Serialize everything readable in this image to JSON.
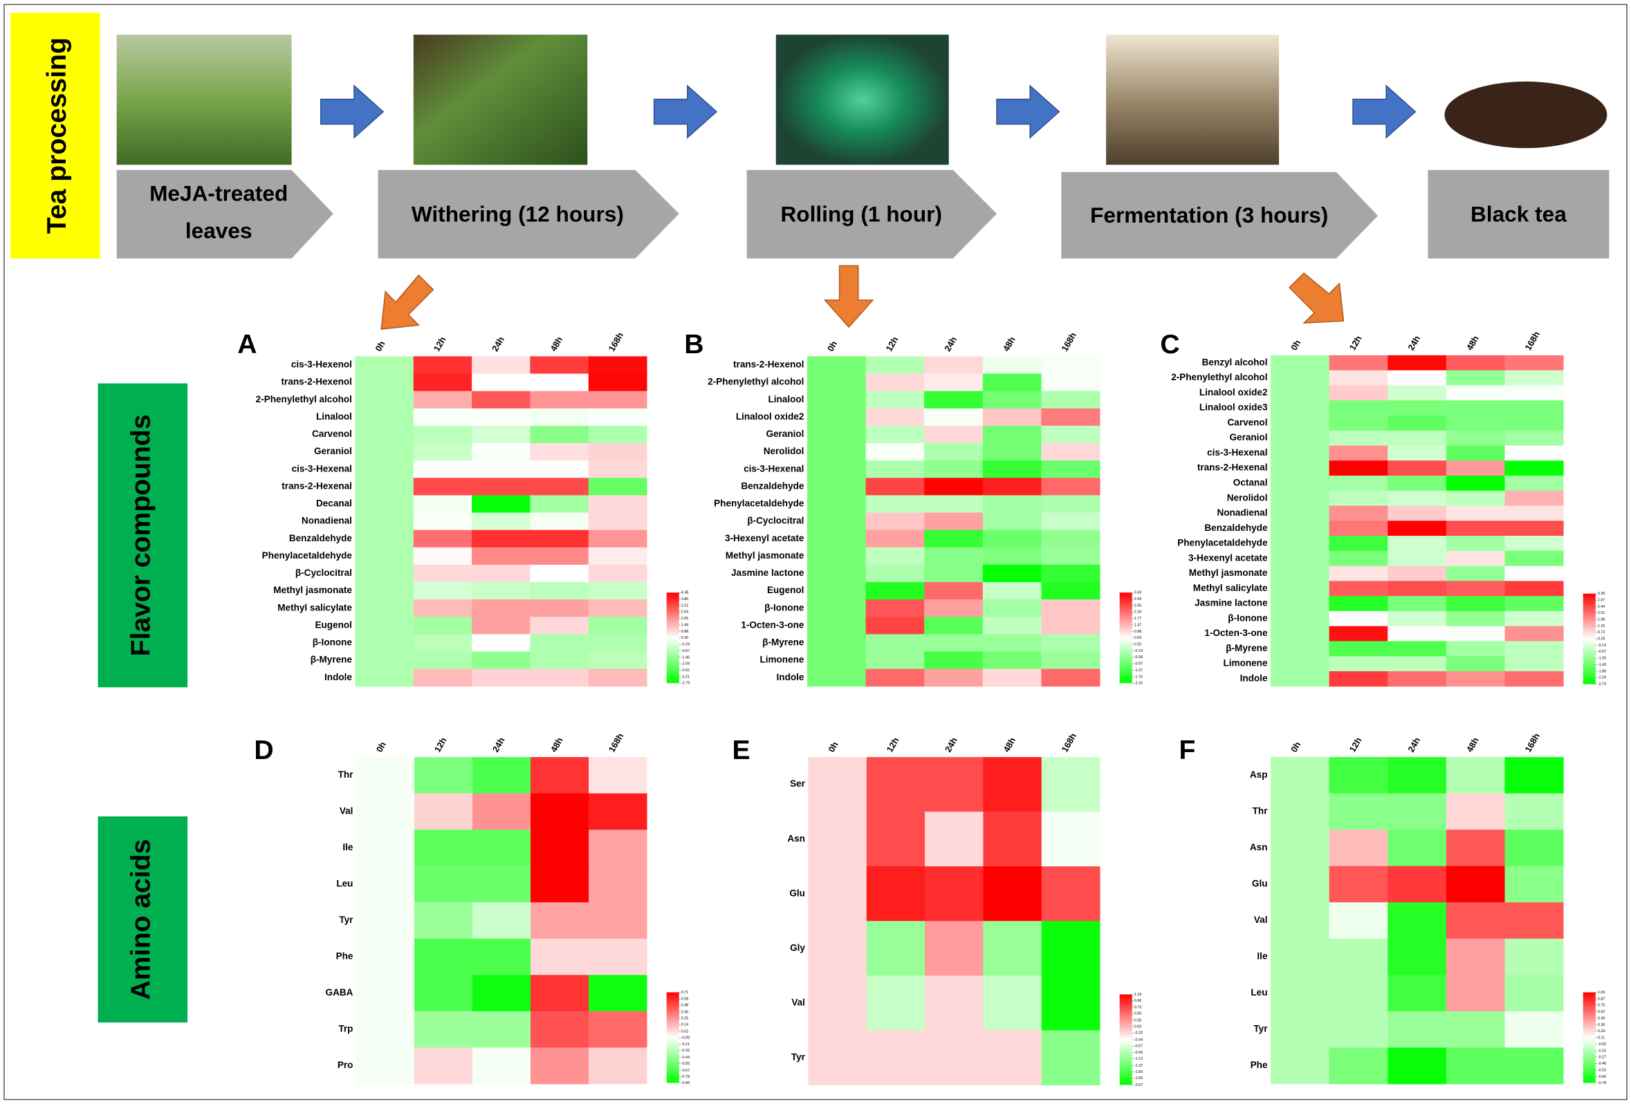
{
  "header": {
    "title": "Tea processing"
  },
  "steps": [
    {
      "lines": [
        "MeJA-treated",
        "leaves"
      ]
    },
    {
      "lines": [
        "Withering (12 hours)"
      ]
    },
    {
      "lines": [
        "Rolling (1 hour)"
      ]
    },
    {
      "lines": [
        "Fermentation (3 hours)"
      ]
    },
    {
      "lines": [
        "Black tea"
      ]
    }
  ],
  "sections": [
    "Flavor compounds",
    "Amino acids"
  ],
  "heatmaps": [
    {
      "panel": "A",
      "columns": [
        "0h",
        "12h",
        "24h",
        "48h",
        "168h"
      ],
      "rows": [
        "cis-3-Hexenol",
        "trans-2-Hexenol",
        "2-Phenylethyl alcohol",
        "Linalool",
        "Carvenol",
        "Geraniol",
        "cis-3-Hexenal",
        "trans-2-Hexenal",
        "Decanal",
        "Nonadienal",
        "Benzaldehyde",
        "Phenylacetaldehyde",
        "β-Cyclocitral",
        "Methyl jasmonate",
        "Methyl salicylate",
        "Eugenol",
        "β-Ionone",
        "β-Myrene",
        "Indole"
      ],
      "values": [
        [
          -1.0,
          3.6,
          0.8,
          3.4,
          4.2
        ],
        [
          -1.0,
          3.8,
          0.3,
          0.3,
          4.3
        ],
        [
          -1.0,
          1.6,
          3.0,
          2.0,
          2.0
        ],
        [
          -1.0,
          0.2,
          0.2,
          0.1,
          0.2
        ],
        [
          -1.0,
          -0.8,
          -0.4,
          -1.6,
          -1.0
        ],
        [
          -1.0,
          -0.6,
          0.2,
          0.8,
          1.0
        ],
        [
          -1.0,
          0.3,
          0.3,
          0.3,
          0.9
        ],
        [
          -1.0,
          3.2,
          3.2,
          3.2,
          -2.2
        ],
        [
          -1.0,
          0.1,
          -3.7,
          -1.2,
          0.9
        ],
        [
          -1.0,
          0.2,
          -0.4,
          0.1,
          0.9
        ],
        [
          -1.0,
          2.6,
          3.6,
          3.6,
          2.0
        ],
        [
          -1.0,
          0.4,
          2.2,
          2.2,
          0.6
        ],
        [
          -1.0,
          0.9,
          0.9,
          0.3,
          0.9
        ],
        [
          -1.0,
          -0.4,
          -0.6,
          -0.8,
          -0.6
        ],
        [
          -1.0,
          1.4,
          1.8,
          1.8,
          1.4
        ],
        [
          -1.0,
          -1.2,
          1.8,
          0.9,
          -1.2
        ],
        [
          -1.0,
          -0.8,
          0.3,
          -1.0,
          -1.0
        ],
        [
          -1.0,
          -1.0,
          -1.5,
          -1.0,
          -0.8
        ],
        [
          -1.0,
          1.4,
          1.0,
          1.0,
          1.4
        ]
      ],
      "colorbar": {
        "ticks": [
          4.38,
          {
            "value": 3.8,
            "label": "3.80"
          },
          3.22,
          2.63,
          2.05,
          1.46,
          0.88,
          {
            "value": 0.3,
            "label": "0.30"
          },
          -0.29,
          -0.87,
          -1.46,
          -2.04,
          -2.62,
          -3.21,
          -3.79
        ]
      }
    },
    {
      "panel": "B",
      "columns": [
        "0h",
        "12h",
        "24h",
        "48h",
        "168h"
      ],
      "rows": [
        "trans-2-Hexenol",
        "2-Phenylethyl alcohol",
        "Linalool",
        "Linalool oxide2",
        "Geraniol",
        "Nerolidol",
        "cis-3-Hexenal",
        "Benzaldehyde",
        "Phenylacetaldehyde",
        "β-Cyclocitral",
        "3-Hexenyl acetate",
        "Methyl jasmonate",
        "Jasmine lactone",
        "Eugenol",
        "β-Ionone",
        "1-Octen-3-one",
        "β-Myrene",
        "Limonene",
        "Indole"
      ],
      "values": [
        [
          -0.9,
          -0.2,
          1.0,
          0.4,
          0.5
        ],
        [
          -0.9,
          1.0,
          0.8,
          -1.3,
          0.5
        ],
        [
          -0.9,
          -0.1,
          -1.6,
          -0.9,
          -0.3
        ],
        [
          -0.9,
          1.0,
          0.5,
          1.2,
          2.0
        ],
        [
          -0.9,
          -0.1,
          1.0,
          -0.9,
          -0.1
        ],
        [
          -0.9,
          0.5,
          -0.3,
          -0.9,
          1.0
        ],
        [
          -0.9,
          -0.3,
          -0.6,
          -1.6,
          -1.0
        ],
        [
          -0.9,
          2.6,
          3.3,
          3.0,
          2.2
        ],
        [
          -0.9,
          -0.1,
          -0.1,
          -0.4,
          -0.3
        ],
        [
          -0.9,
          1.2,
          1.6,
          -0.4,
          0.0
        ],
        [
          -0.9,
          1.6,
          -1.6,
          -1.0,
          -0.6
        ],
        [
          -0.9,
          -0.1,
          -0.7,
          -0.8,
          -0.5
        ],
        [
          -0.9,
          -0.3,
          -0.7,
          -2.1,
          -1.6
        ],
        [
          -0.9,
          -1.8,
          2.2,
          0.0,
          -1.8
        ],
        [
          -0.9,
          2.4,
          1.6,
          -0.4,
          1.2
        ],
        [
          -0.9,
          2.6,
          -1.2,
          -0.1,
          1.2
        ],
        [
          -0.9,
          -0.5,
          -0.5,
          -0.5,
          -0.3
        ],
        [
          -0.9,
          -0.5,
          -1.4,
          -0.9,
          -0.5
        ],
        [
          -0.9,
          2.2,
          1.6,
          1.0,
          2.2
        ]
      ],
      "colorbar": {
        "ticks": [
          3.33,
          2.94,
          2.55,
          2.16,
          1.77,
          1.37,
          0.98,
          0.59,
          {
            "value": 0.2,
            "label": "0.20"
          },
          -0.19,
          -0.58,
          -0.97,
          -1.37,
          -1.76,
          -2.15
        ]
      }
    },
    {
      "panel": "C",
      "columns": [
        "0h",
        "12h",
        "24h",
        "48h",
        "168h"
      ],
      "rows": [
        "Benzyl alcohol",
        "2-Phenylethyl alcohol",
        "Linalool oxide2",
        "Linalool oxide3",
        "Carvenol",
        "Geraniol",
        "cis-3-Hexenal",
        "trans-2-Hexenal",
        "Octanal",
        "Nerolidol",
        "Nonadienal",
        "Benzaldehyde",
        "Phenylacetaldehyde",
        "3-Hexenyl acetate",
        "Methyl jasmonate",
        "Methyl salicylate",
        "Jasmine lactone",
        "β-Ionone",
        "1-Octen-3-one",
        "β-Myrene",
        "Limonene",
        "Indole"
      ],
      "values": [
        [
          -0.8,
          1.9,
          3.2,
          2.2,
          1.9
        ],
        [
          -0.8,
          0.6,
          0.3,
          -1.0,
          -0.3
        ],
        [
          -0.8,
          0.9,
          -0.3,
          0.2,
          0.2
        ],
        [
          -0.8,
          -1.3,
          -1.3,
          -1.3,
          -1.3
        ],
        [
          -0.8,
          -1.3,
          -1.6,
          -1.3,
          -1.3
        ],
        [
          -0.8,
          -0.5,
          -0.5,
          -1.0,
          -0.8
        ],
        [
          -0.8,
          1.6,
          -0.3,
          -1.6,
          0.3
        ],
        [
          -0.8,
          3.3,
          2.4,
          1.5,
          -2.7
        ],
        [
          -0.8,
          -0.8,
          -1.3,
          -2.7,
          -0.8
        ],
        [
          -0.8,
          -0.5,
          -0.3,
          -0.5,
          1.2
        ],
        [
          -0.8,
          1.6,
          0.9,
          0.6,
          0.6
        ],
        [
          -0.8,
          1.9,
          3.3,
          2.4,
          2.4
        ],
        [
          -0.8,
          -2.0,
          -0.3,
          -0.8,
          -0.3
        ],
        [
          -0.8,
          -1.3,
          -0.3,
          0.6,
          -1.3
        ],
        [
          -0.8,
          0.6,
          0.9,
          -1.0,
          0.3
        ],
        [
          -0.8,
          2.2,
          2.4,
          2.2,
          2.6
        ],
        [
          -0.8,
          -2.3,
          -1.3,
          -2.0,
          -1.6
        ],
        [
          -0.8,
          0.3,
          -0.3,
          -1.0,
          -0.3
        ],
        [
          -0.8,
          3.1,
          0.3,
          0.2,
          1.6
        ],
        [
          -0.8,
          -1.8,
          -1.8,
          -0.8,
          -0.5
        ],
        [
          -0.8,
          -0.5,
          -0.5,
          -1.3,
          -0.5
        ],
        [
          -0.8,
          2.6,
          2.0,
          1.6,
          2.0
        ]
      ],
      "colorbar": {
        "ticks": [
          {
            "value": 3.3,
            "label": "3.30"
          },
          2.87,
          2.44,
          2.01,
          1.58,
          1.15,
          0.72,
          0.29,
          -0.14,
          -0.57,
          {
            "value": -1,
            "label": "-1.00"
          },
          -1.43,
          -1.86,
          -2.29,
          -2.73
        ]
      }
    },
    {
      "panel": "D",
      "columns": [
        "0h",
        "12h",
        "24h",
        "48h",
        "168h"
      ],
      "rows": [
        "Thr",
        "Val",
        "Ile",
        "Leu",
        "Tyr",
        "Phe",
        "GABA",
        "Trp",
        "Pro"
      ],
      "values": [
        [
          -0.12,
          -0.5,
          -0.65,
          0.55,
          0.0
        ],
        [
          -0.12,
          0.05,
          0.25,
          0.71,
          0.62
        ],
        [
          -0.12,
          -0.6,
          -0.6,
          0.71,
          0.2
        ],
        [
          -0.12,
          -0.55,
          -0.55,
          0.71,
          0.2
        ],
        [
          -0.12,
          -0.4,
          -0.25,
          0.2,
          0.2
        ],
        [
          -0.12,
          -0.65,
          -0.65,
          0.03,
          0.03
        ],
        [
          -0.12,
          -0.65,
          -0.85,
          0.55,
          -0.85
        ],
        [
          -0.12,
          -0.4,
          -0.4,
          0.45,
          0.38
        ],
        [
          -0.12,
          0.03,
          -0.12,
          0.25,
          0.05
        ]
      ],
      "colorbar": {
        "ticks": [
          0.71,
          0.59,
          0.48,
          0.36,
          0.25,
          0.14,
          0.02,
          -0.09,
          -0.21,
          -0.32,
          -0.44,
          -0.55,
          -0.67,
          -0.78,
          -0.89
        ]
      }
    },
    {
      "panel": "E",
      "columns": [
        "0h",
        "12h",
        "24h",
        "48h",
        "168h"
      ],
      "rows": [
        "Ser",
        "Asn",
        "Glu",
        "Gly",
        "Val",
        "Tyr"
      ],
      "values": [
        [
          -0.2,
          0.7,
          0.7,
          1.0,
          -0.8
        ],
        [
          -0.2,
          0.7,
          -0.2,
          0.8,
          -0.5
        ],
        [
          -0.2,
          1.0,
          0.9,
          1.19,
          0.7
        ],
        [
          -0.2,
          -1.1,
          0.2,
          -1.1,
          -2.0
        ],
        [
          -0.2,
          -0.8,
          -0.2,
          -0.8,
          -2.0
        ],
        [
          -0.2,
          -0.2,
          -0.2,
          -0.2,
          -1.2
        ]
      ],
      "colorbar": {
        "ticks": [
          1.19,
          0.96,
          0.73,
          {
            "value": 0.5,
            "label": "0.50"
          },
          0.26,
          0.03,
          {
            "value": -0.2,
            "label": "-0.20"
          },
          -0.44,
          -0.67,
          {
            "value": -0.9,
            "label": "-0.90"
          },
          -1.13,
          -1.37,
          {
            "value": -1.6,
            "label": "-1.60"
          },
          -1.83,
          -2.07
        ]
      }
    },
    {
      "panel": "F",
      "columns": [
        "0h",
        "12h",
        "24h",
        "48h",
        "168h"
      ],
      "rows": [
        "Asp",
        "Thr",
        "Asn",
        "Glu",
        "Val",
        "Ile",
        "Leu",
        "Tyr",
        "Phe"
      ],
      "values": [
        [
          -0.15,
          -0.55,
          -0.65,
          -0.15,
          -0.75
        ],
        [
          -0.15,
          -0.3,
          -0.3,
          0.25,
          -0.15
        ],
        [
          -0.15,
          0.35,
          -0.4,
          0.7,
          -0.45
        ],
        [
          -0.15,
          0.7,
          0.8,
          1.0,
          -0.3
        ],
        [
          -0.15,
          0.05,
          -0.65,
          0.7,
          0.7
        ],
        [
          -0.15,
          -0.15,
          -0.65,
          0.45,
          -0.15
        ],
        [
          -0.15,
          -0.15,
          -0.55,
          0.45,
          -0.2
        ],
        [
          -0.15,
          -0.15,
          -0.25,
          -0.25,
          0.05
        ],
        [
          -0.15,
          -0.35,
          -0.75,
          -0.45,
          -0.45
        ]
      ],
      "colorbar": {
        "ticks": [
          {
            "value": 1,
            "label": "1.00"
          },
          0.87,
          0.75,
          0.62,
          0.49,
          0.36,
          0.24,
          0.11,
          -0.02,
          -0.15,
          -0.27,
          {
            "value": -0.4,
            "label": "-0.40"
          },
          -0.53,
          -0.66,
          -0.78
        ]
      }
    }
  ]
}
